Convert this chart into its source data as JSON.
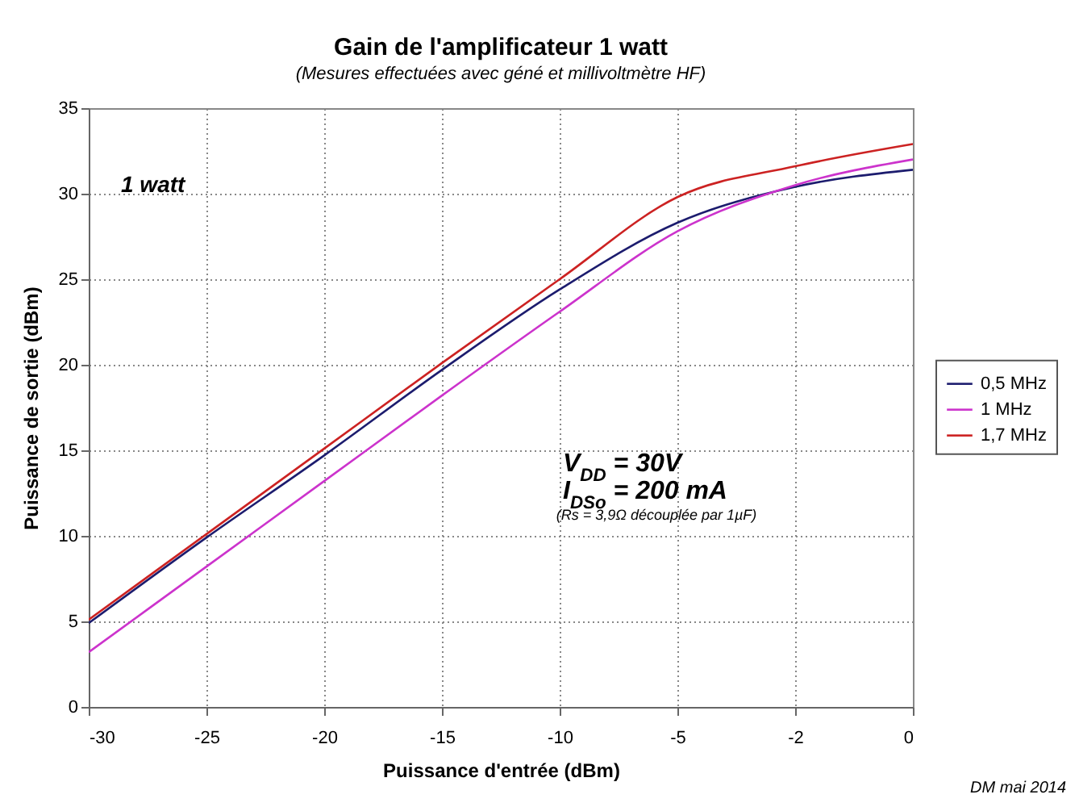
{
  "chart_data": {
    "type": "line",
    "title": "Gain de l'amplificateur 1 watt",
    "subtitle": "(Mesures effectuées avec géné et millivoltmètre HF)",
    "xlabel": "Puissance d'entrée (dBm)",
    "ylabel": "Puissance de sortie (dBm)",
    "categories": [
      "-30",
      "-25",
      "-20",
      "-15",
      "-10",
      "-5",
      "-2",
      "0"
    ],
    "series": [
      {
        "name": "0,5 MHz",
        "color": "#1c1c6e",
        "values": [
          4.9,
          9.9,
          14.7,
          19.7,
          24.4,
          28.3,
          30.4,
          31.4
        ]
      },
      {
        "name": "1 MHz",
        "color": "#cc33cc",
        "values": [
          3.2,
          8.2,
          13.2,
          18.2,
          23.1,
          27.8,
          30.5,
          32.0
        ]
      },
      {
        "name": "1,7 MHz",
        "color": "#cc2222",
        "values": [
          5.1,
          10.1,
          15.1,
          20.1,
          25.0,
          29.8,
          31.6,
          32.9
        ]
      }
    ],
    "ylim": [
      0,
      35
    ],
    "yticks": [
      0,
      5,
      10,
      15,
      20,
      25,
      30,
      35
    ],
    "grid": true,
    "legend": "right",
    "annotations": [
      "1 watt",
      "V$_{DD}$ = 30V",
      "I$_{DSo}$ = 200 mA",
      "(Rs = 3,9Ω découplée par 1µF)",
      "DM mai 2014"
    ]
  }
}
